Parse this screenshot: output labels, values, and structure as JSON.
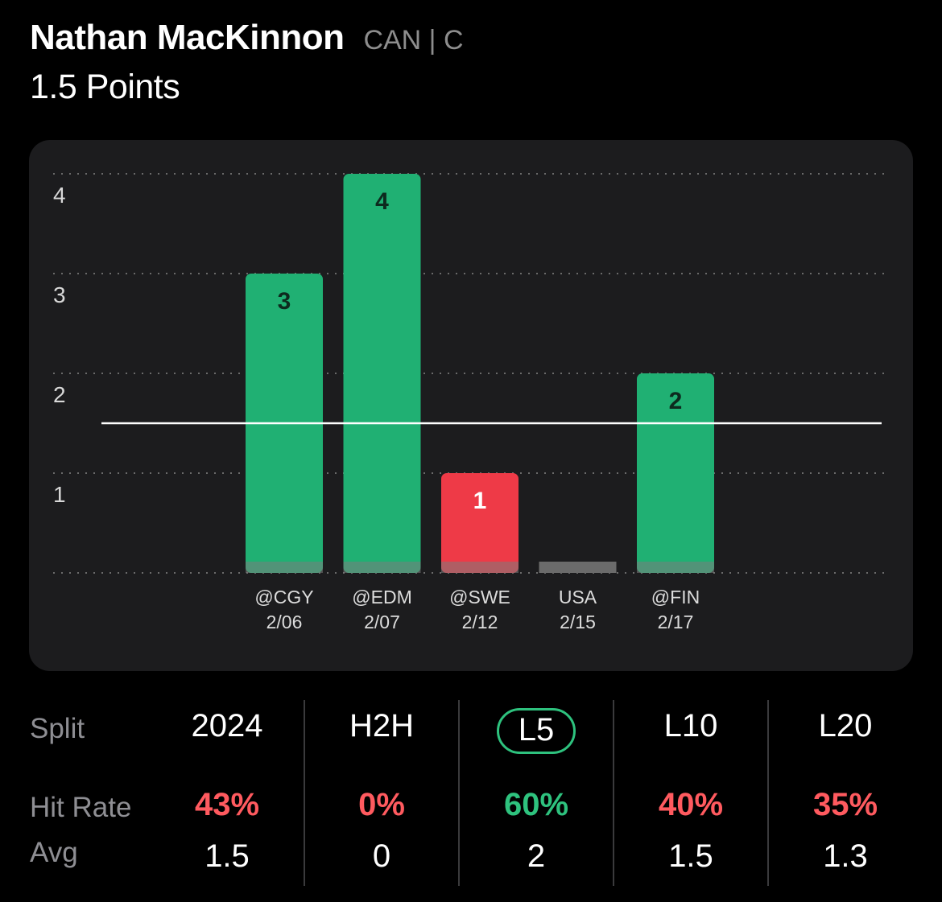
{
  "header": {
    "player_name": "Nathan MacKinnon",
    "player_meta": "CAN | C",
    "prop_line": "1.5 Points"
  },
  "colors": {
    "over": "#20b073",
    "under": "#ee3a47",
    "void": "#6b6b6b",
    "accent": "#2ec27e",
    "rate_good": "#2ec27e",
    "rate_bad": "#ff5a5f"
  },
  "chart_data": {
    "type": "bar",
    "categories": [
      "@CGY 2/06",
      "@EDM 2/07",
      "@SWE 2/12",
      "USA 2/15",
      "@FIN 2/17"
    ],
    "opponents": [
      "@CGY",
      "@EDM",
      "@SWE",
      "USA",
      "@FIN"
    ],
    "dates": [
      "2/06",
      "2/07",
      "2/12",
      "2/15",
      "2/17"
    ],
    "values": [
      3,
      4,
      1,
      null,
      2
    ],
    "value_labels": [
      "3",
      "4",
      "1",
      "",
      "2"
    ],
    "status": [
      "over",
      "over",
      "under",
      "void",
      "over"
    ],
    "y_ticks": [
      1,
      2,
      3,
      4
    ],
    "ylim": [
      0,
      4
    ],
    "threshold": 1.5,
    "grid": true
  },
  "splits": {
    "labels": {
      "split": "Split",
      "hit_rate": "Hit Rate",
      "avg": "Avg"
    },
    "columns": [
      {
        "name": "2024",
        "hit_rate": "43%",
        "avg": "1.5",
        "positive": false,
        "selected": false
      },
      {
        "name": "H2H",
        "hit_rate": "0%",
        "avg": "0",
        "positive": false,
        "selected": false
      },
      {
        "name": "L5",
        "hit_rate": "60%",
        "avg": "2",
        "positive": true,
        "selected": true
      },
      {
        "name": "L10",
        "hit_rate": "40%",
        "avg": "1.5",
        "positive": false,
        "selected": false
      },
      {
        "name": "L20",
        "hit_rate": "35%",
        "avg": "1.3",
        "positive": false,
        "selected": false
      }
    ]
  }
}
